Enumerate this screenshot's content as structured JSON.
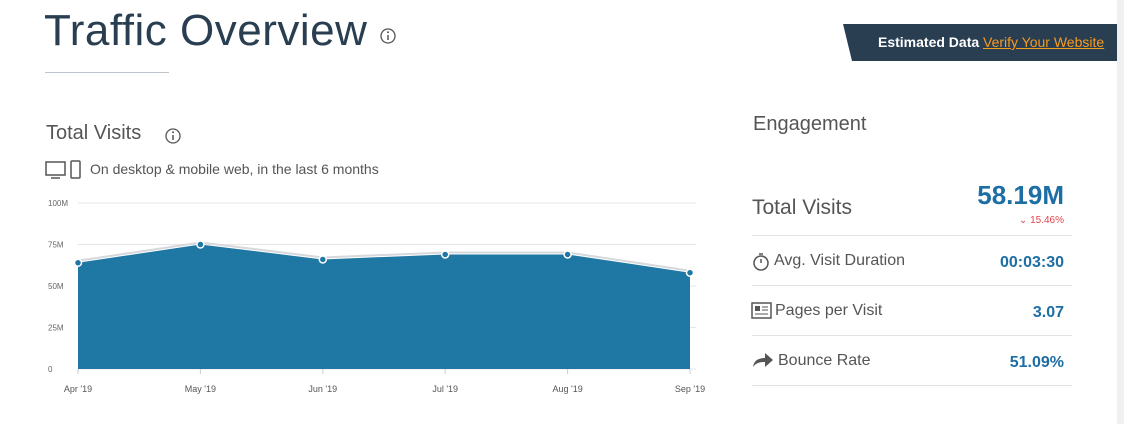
{
  "header": {
    "title": "Traffic Overview",
    "badge_text": "Estimated Data",
    "badge_link": "Verify Your Website"
  },
  "chart_data": {
    "type": "area",
    "title": "Total Visits",
    "subtitle": "On desktop & mobile web, in the last 6 months",
    "categories": [
      "Apr '19",
      "May '19",
      "Jun '19",
      "Jul '19",
      "Aug '19",
      "Sep '19"
    ],
    "values": [
      64000000,
      75000000,
      66000000,
      69000000,
      69000000,
      58000000
    ],
    "color": "#1f77a4",
    "ylim": [
      0,
      100000000
    ],
    "yticks": [
      0,
      {
        "value": 25000000,
        "label": "25M"
      },
      {
        "value": 50000000,
        "label": "50M"
      },
      {
        "value": 75000000,
        "label": "75M"
      },
      {
        "value": 100000000,
        "label": "100M"
      }
    ],
    "grid": true
  },
  "engagement": {
    "title": "Engagement",
    "total_visits": {
      "label": "Total Visits",
      "value": "58.19M",
      "change": "15.46%"
    },
    "rows": [
      {
        "label": "Avg. Visit Duration",
        "value": "00:03:30"
      },
      {
        "label": "Pages per Visit",
        "value": "3.07"
      },
      {
        "label": "Bounce Rate",
        "value": "51.09%"
      }
    ]
  }
}
